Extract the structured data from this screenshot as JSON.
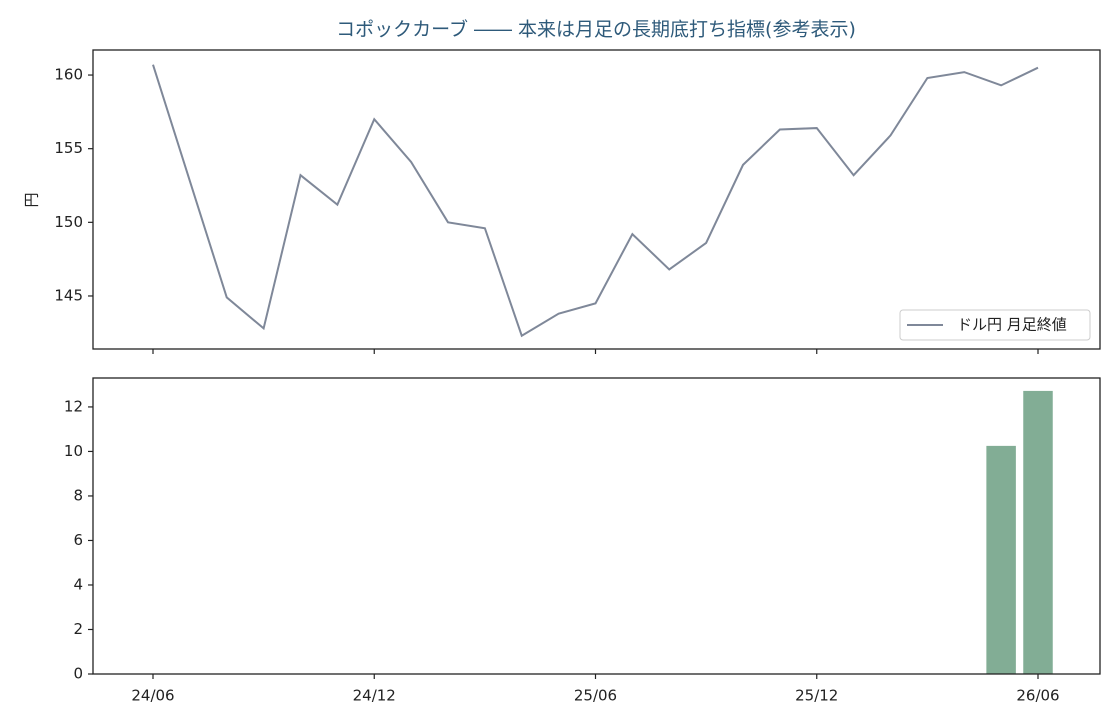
{
  "chart_data": [
    {
      "type": "line",
      "title": "コポックカーブ ―― 本来は月足の長期底打ち指標(参考表示)",
      "ylabel": "円",
      "series": [
        {
          "name": "ドル円 月足終値",
          "color": "#7f8899",
          "values": [
            160.7,
            152.8,
            144.9,
            142.8,
            153.2,
            151.2,
            157.0,
            154.1,
            150.0,
            149.6,
            142.3,
            143.8,
            144.5,
            149.2,
            146.8,
            148.6,
            153.9,
            156.3,
            156.4,
            153.2,
            155.9,
            159.8,
            160.2,
            159.3,
            160.5
          ]
        }
      ],
      "ylim": [
        141.4,
        161.7
      ],
      "yticks": [
        145,
        150,
        155,
        160
      ],
      "legend": "lower right"
    },
    {
      "type": "bar",
      "color": "#82ad95",
      "categories": [
        "24/06",
        null,
        null,
        null,
        null,
        null,
        "24/12",
        null,
        null,
        null,
        null,
        null,
        "25/06",
        null,
        null,
        null,
        null,
        null,
        "25/12",
        null,
        null,
        null,
        null,
        null,
        "26/06"
      ],
      "values": [
        null,
        null,
        null,
        null,
        null,
        null,
        null,
        null,
        null,
        null,
        null,
        null,
        null,
        null,
        null,
        null,
        null,
        null,
        null,
        null,
        null,
        null,
        null,
        10.25,
        12.72
      ],
      "ylim": [
        0,
        13.3
      ],
      "yticks": [
        0,
        2,
        4,
        6,
        8,
        10,
        12
      ]
    }
  ]
}
